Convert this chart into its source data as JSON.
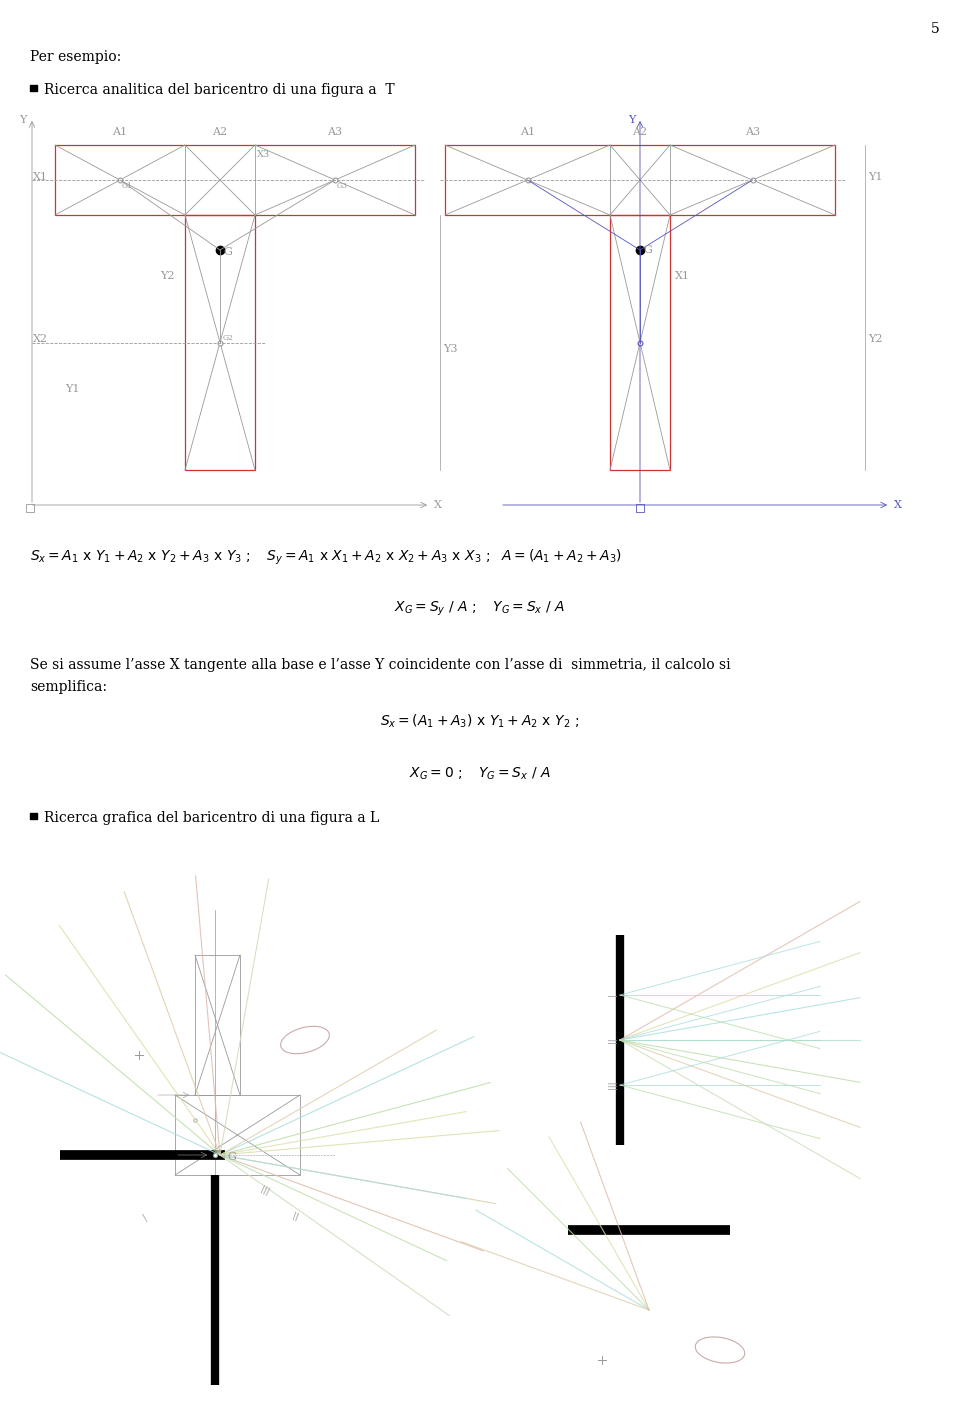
{
  "page_number": "5",
  "text_per_esempio": "Per esempio:",
  "bullet1": "Ricerca analitica del baricentro di una figura a  T",
  "bullet2": "Ricerca grafica del baricentro di una figura a L",
  "bg_color": "#ffffff",
  "gray": "#999999",
  "red": "#cc3333",
  "blue": "#5555bb",
  "black": "#000000"
}
